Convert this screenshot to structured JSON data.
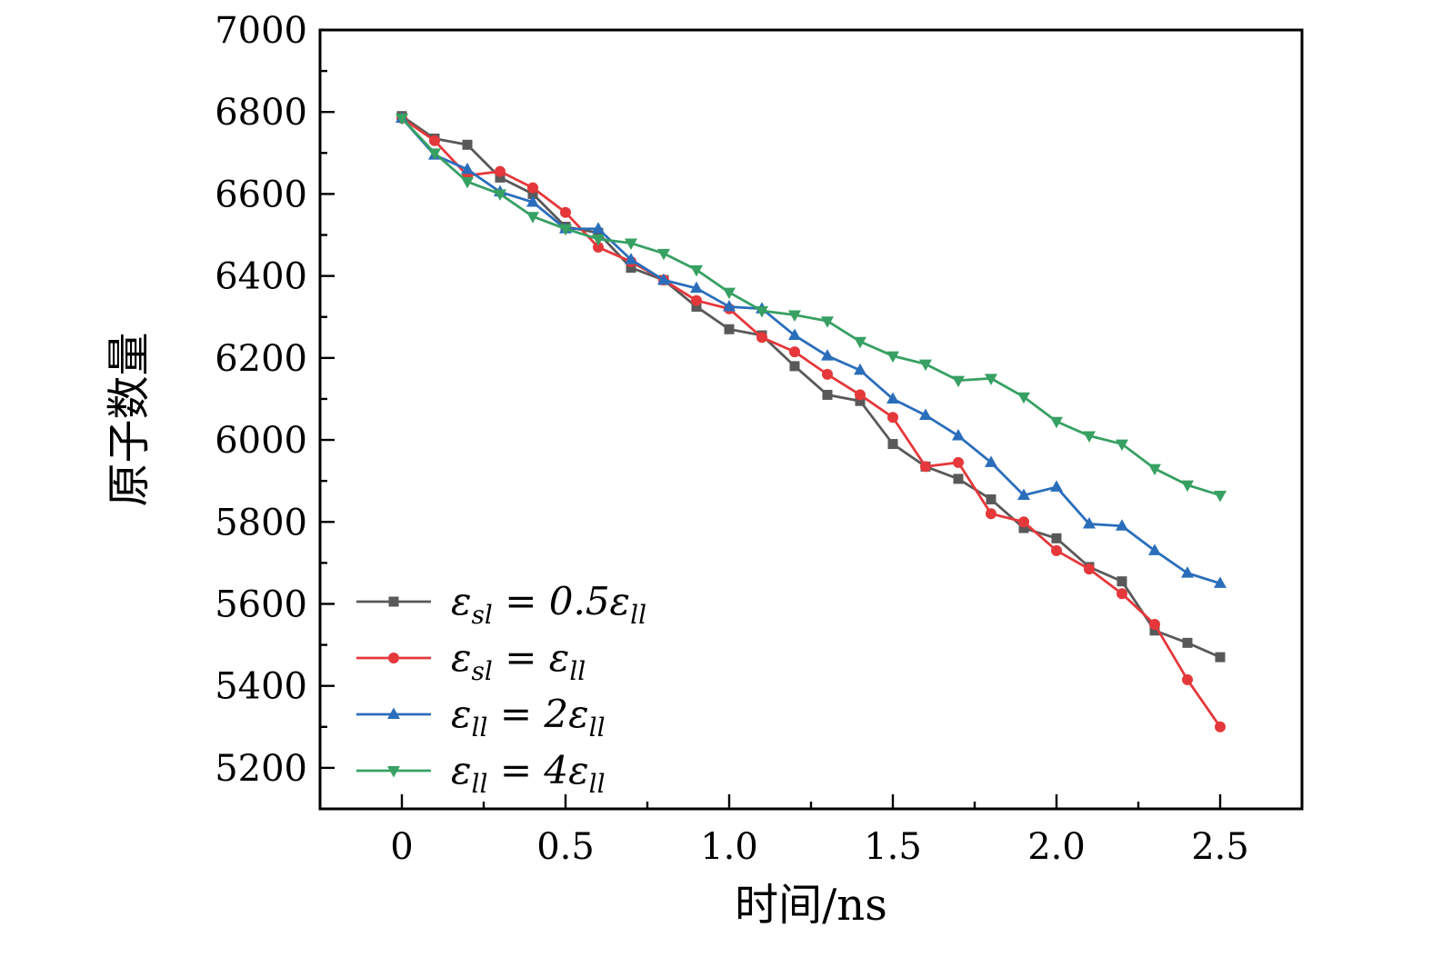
{
  "figure": {
    "background": "#ffffff"
  },
  "chart_data": {
    "type": "line",
    "title": "",
    "xlabel": "时间/ns",
    "ylabel": "原子数量",
    "xlim": [
      -0.25,
      2.75
    ],
    "ylim": [
      5100,
      7000
    ],
    "x_major_ticks": [
      0,
      0.5,
      1.0,
      1.5,
      2.0,
      2.5
    ],
    "x_tick_labels": [
      "0",
      "0.5",
      "1.0",
      "1.5",
      "2.0",
      "2.5"
    ],
    "x_minor_ticks": [
      0.25,
      0.75,
      1.25,
      1.75,
      2.25
    ],
    "y_major_ticks": [
      5200,
      5400,
      5600,
      5800,
      6000,
      6200,
      6400,
      6600,
      6800,
      7000
    ],
    "y_tick_labels": [
      "5200",
      "5400",
      "5600",
      "5800",
      "6000",
      "6200",
      "6400",
      "6600",
      "6800",
      "7000"
    ],
    "y_minor_ticks": [
      5300,
      5500,
      5700,
      5900,
      6100,
      6300,
      6500,
      6700,
      6900
    ],
    "grid": false,
    "legend_position": "lower-left",
    "x": [
      0.0,
      0.1,
      0.2,
      0.3,
      0.4,
      0.5,
      0.6,
      0.7,
      0.8,
      0.9,
      1.0,
      1.1,
      1.2,
      1.3,
      1.4,
      1.5,
      1.6,
      1.7,
      1.8,
      1.9,
      2.0,
      2.1,
      2.2,
      2.3,
      2.4,
      2.5
    ],
    "series": [
      {
        "name": "ε_sl = 0.5ε_ll",
        "color": "#595959",
        "marker": "square",
        "values": [
          6790,
          6735,
          6720,
          6640,
          6600,
          6520,
          6505,
          6420,
          6390,
          6325,
          6270,
          6255,
          6180,
          6110,
          6095,
          5990,
          5935,
          5905,
          5855,
          5785,
          5760,
          5690,
          5655,
          5535,
          5505,
          5470
        ]
      },
      {
        "name": "ε_sl = ε_ll",
        "color": "#e5383b",
        "marker": "circle",
        "values": [
          6785,
          6730,
          6645,
          6655,
          6615,
          6555,
          6470,
          6435,
          6390,
          6340,
          6320,
          6250,
          6215,
          6160,
          6110,
          6055,
          5935,
          5945,
          5820,
          5800,
          5730,
          5685,
          5625,
          5550,
          5415,
          5300
        ]
      },
      {
        "name": "ε_ll = 2ε_ll",
        "color": "#2a6ebb",
        "marker": "triangle-up",
        "values": [
          6785,
          6695,
          6660,
          6605,
          6580,
          6515,
          6515,
          6440,
          6390,
          6370,
          6325,
          6320,
          6255,
          6205,
          6170,
          6100,
          6060,
          6010,
          5945,
          5865,
          5885,
          5795,
          5790,
          5730,
          5675,
          5650
        ]
      },
      {
        "name": "ε_ll = 4ε_ll",
        "color": "#37a063",
        "marker": "triangle-down",
        "values": [
          6785,
          6700,
          6630,
          6600,
          6545,
          6515,
          6490,
          6480,
          6455,
          6415,
          6360,
          6315,
          6305,
          6290,
          6240,
          6205,
          6185,
          6145,
          6150,
          6105,
          6045,
          6010,
          5990,
          5930,
          5890,
          5865
        ]
      }
    ]
  }
}
